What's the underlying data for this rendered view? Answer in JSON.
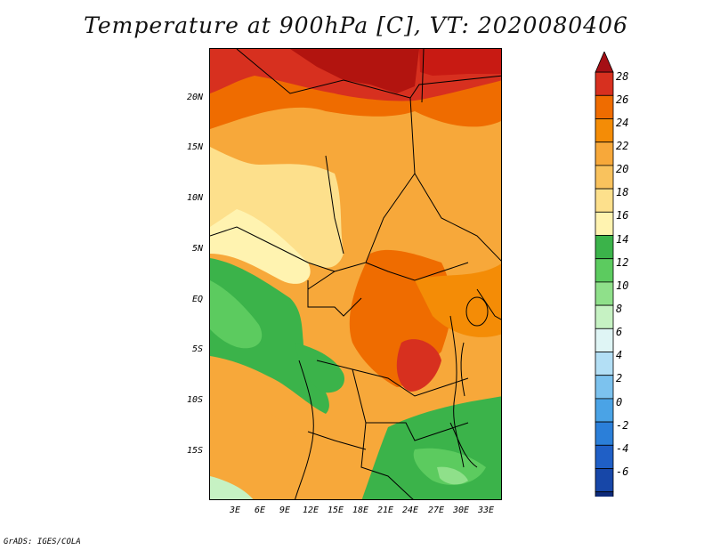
{
  "title": "Temperature at 900hPa [C], VT: 2020080406",
  "map": {
    "variable": "Temperature",
    "level": "900hPa",
    "units": "C",
    "valid_time": "2020080406",
    "lat_labels": [
      "20N",
      "15N",
      "10N",
      "5N",
      "EQ",
      "5S",
      "10S",
      "15S"
    ],
    "lon_labels": [
      "3E",
      "6E",
      "9E",
      "12E",
      "15E",
      "18E",
      "21E",
      "24E",
      "27E",
      "30E",
      "33E"
    ]
  },
  "colorbar": {
    "labels": [
      "28",
      "26",
      "24",
      "22",
      "20",
      "18",
      "16",
      "14",
      "12",
      "10",
      "8",
      "6",
      "4",
      "2",
      "0",
      "-2",
      "-4",
      "-6"
    ],
    "colors": [
      "#a50f15",
      "#d7301f",
      "#ef6c00",
      "#f48c06",
      "#f7a83a",
      "#f9c25d",
      "#fde08c",
      "#fff3b0",
      "#3bb34a",
      "#5ccb5f",
      "#8fe08a",
      "#c6f2c3",
      "#dff5f5",
      "#b3dff5",
      "#7cc2ee",
      "#4aa3e6",
      "#2b7fd9",
      "#1f5fc6",
      "#1747a8",
      "#0d2a7a",
      "#e6e6fa"
    ]
  },
  "credit": "GrADS: IGES/COLA"
}
